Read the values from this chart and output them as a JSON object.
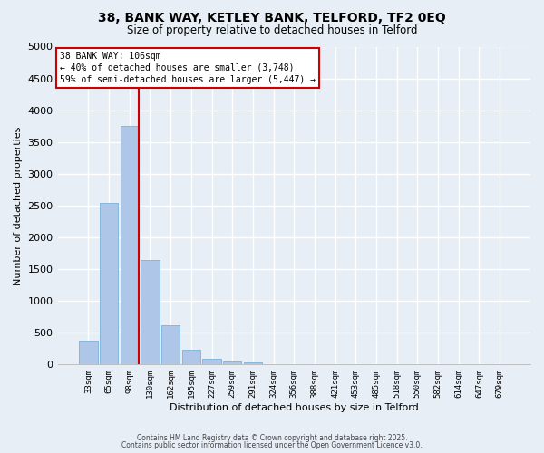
{
  "title": "38, BANK WAY, KETLEY BANK, TELFORD, TF2 0EQ",
  "subtitle": "Size of property relative to detached houses in Telford",
  "xlabel": "Distribution of detached houses by size in Telford",
  "ylabel": "Number of detached properties",
  "categories": [
    "33sqm",
    "65sqm",
    "98sqm",
    "130sqm",
    "162sqm",
    "195sqm",
    "227sqm",
    "259sqm",
    "291sqm",
    "324sqm",
    "356sqm",
    "388sqm",
    "421sqm",
    "453sqm",
    "485sqm",
    "518sqm",
    "550sqm",
    "582sqm",
    "614sqm",
    "647sqm",
    "679sqm"
  ],
  "values": [
    380,
    2540,
    3760,
    1650,
    620,
    230,
    90,
    45,
    35,
    5,
    2,
    0,
    0,
    0,
    0,
    0,
    0,
    0,
    0,
    0,
    0
  ],
  "bar_color": "#aec6e8",
  "bar_edge_color": "#6aaad4",
  "vline_color": "#cc0000",
  "ylim": [
    0,
    5000
  ],
  "yticks": [
    0,
    500,
    1000,
    1500,
    2000,
    2500,
    3000,
    3500,
    4000,
    4500,
    5000
  ],
  "bg_color": "#e8eef5",
  "grid_color": "#ffffff",
  "annotation_title": "38 BANK WAY: 106sqm",
  "annotation_line1": "← 40% of detached houses are smaller (3,748)",
  "annotation_line2": "59% of semi-detached houses are larger (5,447) →",
  "annotation_box_color": "#ffffff",
  "annotation_box_edge": "#cc0000",
  "footer_line1": "Contains HM Land Registry data © Crown copyright and database right 2025.",
  "footer_line2": "Contains public sector information licensed under the Open Government Licence v3.0."
}
